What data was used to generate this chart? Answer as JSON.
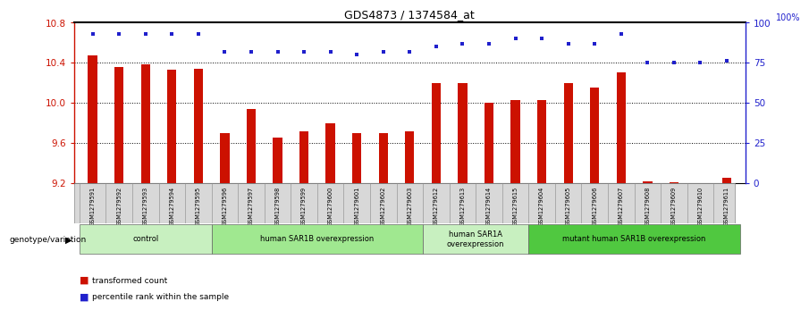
{
  "title": "GDS4873 / 1374584_at",
  "samples": [
    "GSM1279591",
    "GSM1279592",
    "GSM1279593",
    "GSM1279594",
    "GSM1279595",
    "GSM1279596",
    "GSM1279597",
    "GSM1279598",
    "GSM1279599",
    "GSM1279600",
    "GSM1279601",
    "GSM1279602",
    "GSM1279603",
    "GSM1279612",
    "GSM1279613",
    "GSM1279614",
    "GSM1279615",
    "GSM1279604",
    "GSM1279605",
    "GSM1279606",
    "GSM1279607",
    "GSM1279608",
    "GSM1279609",
    "GSM1279610",
    "GSM1279611"
  ],
  "bar_values": [
    10.47,
    10.36,
    10.38,
    10.33,
    10.34,
    9.7,
    9.94,
    9.65,
    9.72,
    9.8,
    9.7,
    9.7,
    9.72,
    10.2,
    10.2,
    10.0,
    10.03,
    10.03,
    10.2,
    10.15,
    10.3,
    9.22,
    9.21,
    9.2,
    9.25
  ],
  "percentile_raw": [
    93,
    93,
    93,
    93,
    93,
    82,
    82,
    82,
    82,
    82,
    80,
    82,
    82,
    85,
    87,
    87,
    90,
    90,
    87,
    87,
    93,
    75,
    75,
    75,
    76
  ],
  "groups": [
    {
      "label": "control",
      "start": 0,
      "end": 4,
      "color": "#c8f0c0"
    },
    {
      "label": "human SAR1B overexpression",
      "start": 5,
      "end": 12,
      "color": "#a0e890"
    },
    {
      "label": "human SAR1A\noverexpression",
      "start": 13,
      "end": 16,
      "color": "#c8f0c0"
    },
    {
      "label": "mutant human SAR1B overexpression",
      "start": 17,
      "end": 24,
      "color": "#50c840"
    }
  ],
  "ylim_left": [
    9.2,
    10.8
  ],
  "ylim_right": [
    0,
    100
  ],
  "yticks_left": [
    9.2,
    9.6,
    10.0,
    10.4,
    10.8
  ],
  "yticks_right": [
    0,
    25,
    50,
    75,
    100
  ],
  "bar_color": "#cc1100",
  "dot_color": "#2020cc",
  "background_color": "#ffffff",
  "legend_tc": "transformed count",
  "legend_pr": "percentile rank within the sample"
}
